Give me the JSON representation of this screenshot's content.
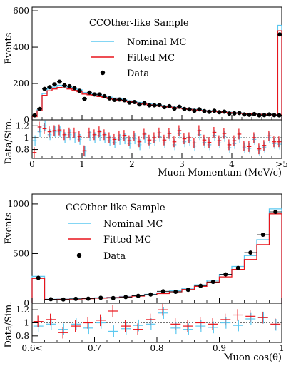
{
  "colors": {
    "nominal": "#5bc8f0",
    "fitted": "#e8141b",
    "data": "#000000"
  },
  "chart_data": [
    {
      "type": "histogram",
      "title": "CCOther-like Sample",
      "xlabel": "Muon Momentum (MeV/c)",
      "ylabel": "Events",
      "ratio_ylabel": "Data/Sim.",
      "xlim": [
        0,
        5
      ],
      "ylim": [
        0,
        620
      ],
      "ratio_ylim": [
        0.65,
        1.3
      ],
      "x_ticks": [
        0,
        1,
        2,
        3,
        4,
        5
      ],
      "x_tick_labels": [
        "0",
        "1",
        "2",
        "3",
        "4",
        ">5"
      ],
      "y_ticks": [
        0,
        200,
        400,
        600
      ],
      "ratio_y_ticks": [
        0.8,
        1,
        1.2
      ],
      "bin_edges": [
        0,
        0.1,
        0.2,
        0.3,
        0.4,
        0.5,
        0.6,
        0.7,
        0.8,
        0.9,
        1.0,
        1.1,
        1.2,
        1.3,
        1.4,
        1.5,
        1.6,
        1.7,
        1.8,
        1.9,
        2.0,
        2.1,
        2.2,
        2.3,
        2.4,
        2.5,
        2.6,
        2.7,
        2.8,
        2.9,
        3.0,
        3.1,
        3.2,
        3.3,
        3.4,
        3.5,
        3.6,
        3.7,
        3.8,
        3.9,
        4.0,
        4.1,
        4.2,
        4.3,
        4.4,
        4.5,
        4.6,
        4.7,
        4.8,
        4.9,
        5.0
      ],
      "overflow_bin": [
        4.92,
        5.0
      ],
      "series": [
        {
          "name": "Nominal MC",
          "values": [
            20,
            55,
            145,
            170,
            180,
            190,
            185,
            180,
            172,
            165,
            150,
            145,
            140,
            135,
            130,
            125,
            120,
            115,
            110,
            105,
            100,
            96,
            92,
            88,
            84,
            80,
            77,
            73,
            70,
            67,
            64,
            61,
            58,
            55,
            52,
            50,
            48,
            46,
            44,
            42,
            40,
            38,
            36,
            34,
            33,
            32,
            31,
            30,
            29,
            28
          ],
          "overflow": 520
        },
        {
          "name": "Fitted MC",
          "values": [
            18,
            50,
            135,
            160,
            170,
            178,
            175,
            170,
            162,
            155,
            142,
            138,
            133,
            128,
            123,
            118,
            113,
            109,
            104,
            100,
            95,
            91,
            87,
            83,
            80,
            76,
            73,
            70,
            67,
            64,
            61,
            58,
            55,
            52,
            50,
            48,
            46,
            44,
            42,
            40,
            38,
            36,
            35,
            33,
            32,
            31,
            30,
            29,
            28,
            27
          ],
          "overflow": 490
        },
        {
          "name": "Data",
          "values": [
            25,
            60,
            170,
            180,
            195,
            210,
            190,
            185,
            175,
            160,
            115,
            150,
            140,
            140,
            130,
            118,
            110,
            112,
            108,
            95,
            98,
            85,
            92,
            80,
            80,
            82,
            70,
            75,
            62,
            72,
            60,
            58,
            50,
            58,
            48,
            44,
            50,
            42,
            45,
            35,
            36,
            38,
            30,
            28,
            32,
            25,
            26,
            30,
            26,
            25
          ],
          "overflow": 470
        }
      ],
      "ratio": {
        "nominal": [
          0.95,
          1.1,
          1.2,
          1.05,
          1.1,
          1.1,
          1.0,
          1.05,
          1.0,
          0.97,
          0.77,
          1.03,
          1.0,
          1.04,
          1.0,
          0.95,
          0.92,
          0.97,
          0.98,
          0.9,
          0.98,
          0.88,
          1.0,
          0.9,
          0.95,
          1.02,
          0.91,
          1.03,
          0.88,
          1.07,
          0.93,
          0.95,
          0.86,
          1.05,
          0.92,
          0.88,
          1.04,
          0.91,
          1.02,
          0.83,
          0.9,
          1.0,
          0.83,
          0.82,
          0.97,
          0.78,
          0.84,
          1.0,
          0.9,
          0.89
        ],
        "fitted": [
          0.75,
          1.18,
          1.15,
          1.1,
          1.12,
          1.13,
          1.05,
          1.08,
          1.08,
          1.02,
          0.78,
          1.08,
          1.05,
          1.1,
          1.05,
          1.0,
          0.97,
          1.03,
          1.04,
          0.95,
          1.03,
          0.93,
          1.06,
          0.96,
          1.0,
          1.08,
          0.96,
          1.07,
          0.93,
          1.12,
          0.98,
          1.0,
          0.91,
          1.12,
          0.96,
          0.92,
          1.09,
          0.95,
          1.07,
          0.88,
          0.95,
          1.06,
          0.86,
          0.85,
          1.0,
          0.81,
          0.87,
          1.03,
          0.93,
          0.93
        ]
      },
      "legend": {
        "placement": "top-center",
        "entries": [
          "Nominal MC",
          "Fitted MC",
          "Data"
        ]
      }
    },
    {
      "type": "histogram",
      "title": "CCOther-like Sample",
      "xlabel": "Muon cos(θ)",
      "ylabel": "Events",
      "ratio_ylabel": "Data/Sim.",
      "xlim": [
        0.6,
        1.0
      ],
      "ylim": [
        0,
        1100
      ],
      "ratio_ylim": [
        0.7,
        1.3
      ],
      "x_ticks": [
        0.6,
        0.7,
        0.8,
        0.9,
        1.0
      ],
      "x_tick_labels": [
        "0.6<",
        "0.7",
        "0.8",
        "0.9",
        "1"
      ],
      "y_ticks": [
        0,
        500,
        1000
      ],
      "ratio_y_ticks": [
        0.8,
        1,
        1.2
      ],
      "bin_edges": [
        0.6,
        0.62,
        0.64,
        0.66,
        0.68,
        0.7,
        0.72,
        0.74,
        0.76,
        0.78,
        0.8,
        0.82,
        0.84,
        0.86,
        0.88,
        0.9,
        0.92,
        0.94,
        0.96,
        0.98,
        1.0
      ],
      "series": [
        {
          "name": "Nominal MC",
          "values": [
            270,
            40,
            42,
            45,
            50,
            55,
            60,
            68,
            78,
            90,
            105,
            125,
            150,
            185,
            230,
            290,
            370,
            480,
            640,
            950
          ]
        },
        {
          "name": "Fitted MC",
          "values": [
            250,
            37,
            39,
            42,
            46,
            51,
            56,
            63,
            72,
            84,
            97,
            115,
            138,
            170,
            210,
            265,
            340,
            440,
            590,
            900
          ]
        },
        {
          "name": "Data",
          "values": [
            255,
            40,
            38,
            44,
            46,
            55,
            52,
            62,
            75,
            88,
            120,
            115,
            135,
            175,
            215,
            290,
            355,
            510,
            690,
            920
          ]
        }
      ],
      "ratio": {
        "nominal": [
          0.95,
          0.98,
          0.9,
          0.98,
          0.92,
          1.0,
          0.87,
          0.91,
          0.96,
          0.98,
          1.15,
          0.92,
          0.9,
          0.95,
          0.93,
          1.0,
          0.96,
          1.06,
          1.08,
          0.97
        ],
        "fitted": [
          1.02,
          1.05,
          0.85,
          0.95,
          1.0,
          1.04,
          1.18,
          0.95,
          0.9,
          1.05,
          1.2,
          0.98,
          0.95,
          1.0,
          0.98,
          1.05,
          1.12,
          1.1,
          1.08,
          0.98
        ]
      },
      "legend": {
        "placement": "top-center",
        "entries": [
          "Nominal MC",
          "Fitted MC",
          "Data"
        ]
      }
    }
  ]
}
